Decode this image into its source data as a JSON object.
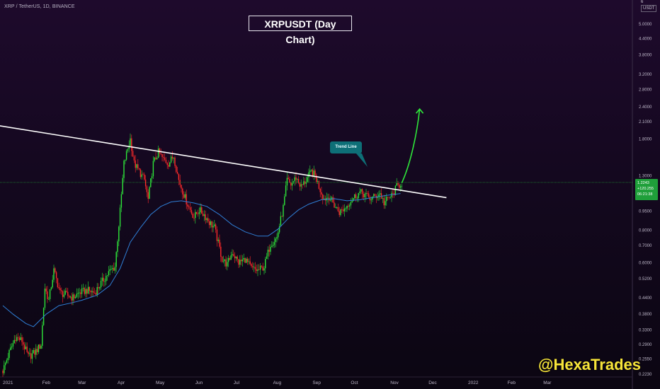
{
  "header": {
    "symbol_line": "XRP / TetherUS, 1D, BINANCE",
    "chart_title": "XRPUSDT (Day Chart)",
    "watermark": "@HexaTrades"
  },
  "price_axis": {
    "top_value": "6",
    "unit": "USDT",
    "current_price_box": [
      "1.2243",
      "+120.255",
      "06:21:38"
    ]
  },
  "annotation": {
    "callout_label": "Trend Line"
  },
  "colors": {
    "bull": "#2ee63a",
    "bear": "#ff2a2a",
    "ma": "#2f7fd6",
    "trendline": "#ffffff",
    "arrow": "#2ee63a",
    "price_line": "#1fa836",
    "callout_bg": "#0e6f77",
    "watermark": "#f7e53a"
  },
  "chart_data": {
    "type": "line",
    "title": "XRPUSDT (Day Chart)",
    "xlabel": "",
    "ylabel": "",
    "scale": "log",
    "ylim": [
      0.223,
      6
    ],
    "y_ticks": [
      {
        "value": 5.0,
        "label": "5.0000"
      },
      {
        "value": 4.4,
        "label": "4.4000"
      },
      {
        "value": 3.8,
        "label": "3.8000"
      },
      {
        "value": 3.2,
        "label": "3.2000"
      },
      {
        "value": 2.8,
        "label": "2.8000"
      },
      {
        "value": 2.4,
        "label": "2.4000"
      },
      {
        "value": 2.1,
        "label": "2.1000"
      },
      {
        "value": 1.8,
        "label": "1.8000"
      },
      {
        "value": 1.3,
        "label": "1.3000"
      },
      {
        "value": 0.95,
        "label": "0.9500"
      },
      {
        "value": 0.8,
        "label": "0.8000"
      },
      {
        "value": 0.7,
        "label": "0.7000"
      },
      {
        "value": 0.6,
        "label": "0.6000"
      },
      {
        "value": 0.52,
        "label": "0.5200"
      },
      {
        "value": 0.44,
        "label": "0.4400"
      },
      {
        "value": 0.38,
        "label": "0.3800"
      },
      {
        "value": 0.33,
        "label": "0.3300"
      },
      {
        "value": 0.29,
        "label": "0.2900"
      },
      {
        "value": 0.255,
        "label": "0.2550"
      },
      {
        "value": 0.223,
        "label": "0.2230"
      }
    ],
    "x_ticks": [
      {
        "day": 0,
        "label": "2021"
      },
      {
        "day": 31,
        "label": "Feb"
      },
      {
        "day": 59,
        "label": "Mar"
      },
      {
        "day": 90,
        "label": "Apr"
      },
      {
        "day": 120,
        "label": "May"
      },
      {
        "day": 151,
        "label": "Jun"
      },
      {
        "day": 181,
        "label": "Jul"
      },
      {
        "day": 212,
        "label": "Aug"
      },
      {
        "day": 243,
        "label": "Sep"
      },
      {
        "day": 273,
        "label": "Oct"
      },
      {
        "day": 304,
        "label": "Nov"
      },
      {
        "day": 334,
        "label": "Dec"
      },
      {
        "day": 365,
        "label": "2022"
      },
      {
        "day": 396,
        "label": "Feb"
      },
      {
        "day": 424,
        "label": "Mar"
      }
    ],
    "price_path": [
      [
        0,
        0.23
      ],
      [
        5,
        0.27
      ],
      [
        10,
        0.31
      ],
      [
        15,
        0.3
      ],
      [
        20,
        0.26
      ],
      [
        25,
        0.27
      ],
      [
        30,
        0.29
      ],
      [
        33,
        0.48
      ],
      [
        36,
        0.43
      ],
      [
        40,
        0.56
      ],
      [
        45,
        0.46
      ],
      [
        50,
        0.45
      ],
      [
        55,
        0.44
      ],
      [
        60,
        0.46
      ],
      [
        66,
        0.47
      ],
      [
        72,
        0.46
      ],
      [
        77,
        0.5
      ],
      [
        83,
        0.55
      ],
      [
        88,
        0.58
      ],
      [
        92,
        0.95
      ],
      [
        95,
        1.45
      ],
      [
        100,
        1.8
      ],
      [
        103,
        1.45
      ],
      [
        107,
        1.35
      ],
      [
        111,
        1.25
      ],
      [
        114,
        1.05
      ],
      [
        118,
        1.45
      ],
      [
        122,
        1.6
      ],
      [
        126,
        1.5
      ],
      [
        130,
        1.45
      ],
      [
        134,
        1.55
      ],
      [
        138,
        1.25
      ],
      [
        142,
        1.1
      ],
      [
        146,
        0.98
      ],
      [
        150,
        0.9
      ],
      [
        154,
        0.96
      ],
      [
        158,
        0.92
      ],
      [
        162,
        0.86
      ],
      [
        166,
        0.82
      ],
      [
        172,
        0.62
      ],
      [
        176,
        0.59
      ],
      [
        180,
        0.66
      ],
      [
        185,
        0.6
      ],
      [
        190,
        0.62
      ],
      [
        195,
        0.57
      ],
      [
        200,
        0.56
      ],
      [
        205,
        0.58
      ],
      [
        210,
        0.71
      ],
      [
        215,
        0.75
      ],
      [
        220,
        0.98
      ],
      [
        223,
        1.25
      ],
      [
        226,
        1.2
      ],
      [
        230,
        1.28
      ],
      [
        234,
        1.18
      ],
      [
        238,
        1.25
      ],
      [
        242,
        1.35
      ],
      [
        245,
        1.3
      ],
      [
        248,
        1.18
      ],
      [
        252,
        1.06
      ],
      [
        256,
        1.08
      ],
      [
        260,
        1.0
      ],
      [
        264,
        0.94
      ],
      [
        268,
        0.97
      ],
      [
        272,
        1.03
      ],
      [
        276,
        1.08
      ],
      [
        280,
        1.12
      ],
      [
        284,
        1.1
      ],
      [
        288,
        1.06
      ],
      [
        292,
        1.08
      ],
      [
        296,
        1.11
      ],
      [
        299,
        1.02
      ],
      [
        302,
        1.06
      ],
      [
        306,
        1.1
      ],
      [
        309,
        1.18
      ],
      [
        313,
        1.22
      ]
    ],
    "ma_path": [
      [
        0,
        0.41
      ],
      [
        8,
        0.38
      ],
      [
        18,
        0.35
      ],
      [
        24,
        0.34
      ],
      [
        34,
        0.38
      ],
      [
        44,
        0.41
      ],
      [
        54,
        0.42
      ],
      [
        62,
        0.43
      ],
      [
        74,
        0.45
      ],
      [
        84,
        0.49
      ],
      [
        92,
        0.57
      ],
      [
        100,
        0.72
      ],
      [
        108,
        0.82
      ],
      [
        116,
        0.92
      ],
      [
        124,
        0.99
      ],
      [
        132,
        1.03
      ],
      [
        140,
        1.04
      ],
      [
        150,
        1.02
      ],
      [
        160,
        0.99
      ],
      [
        170,
        0.92
      ],
      [
        180,
        0.84
      ],
      [
        190,
        0.79
      ],
      [
        200,
        0.76
      ],
      [
        208,
        0.76
      ],
      [
        216,
        0.81
      ],
      [
        224,
        0.89
      ],
      [
        232,
        0.96
      ],
      [
        240,
        1.01
      ],
      [
        250,
        1.05
      ],
      [
        260,
        1.06
      ],
      [
        270,
        1.04
      ],
      [
        280,
        1.05
      ],
      [
        290,
        1.07
      ],
      [
        300,
        1.09
      ],
      [
        312,
        1.11
      ]
    ],
    "trend_line": [
      [
        -9,
        2.05
      ],
      [
        348,
        1.07
      ]
    ],
    "projection_arrow": [
      [
        313,
        1.22
      ],
      [
        320,
        1.45
      ],
      [
        325,
        1.9
      ],
      [
        327,
        2.35
      ]
    ],
    "current_price": 1.2243
  }
}
